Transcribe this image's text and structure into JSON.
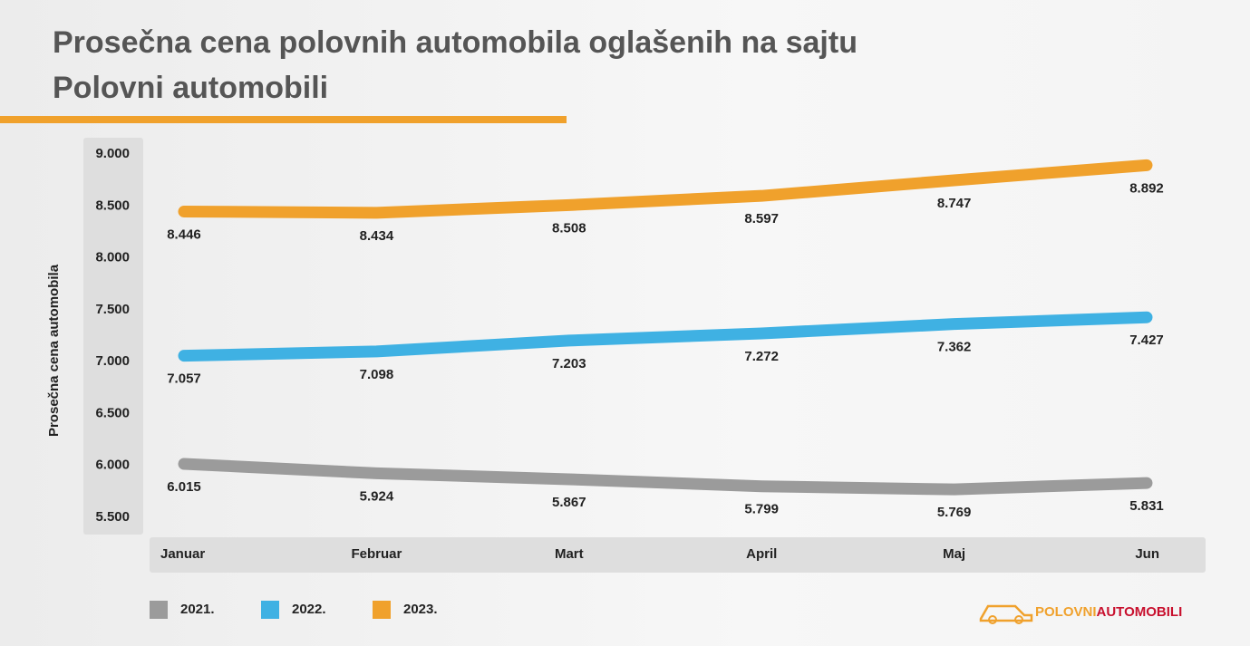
{
  "chart_data": {
    "type": "line",
    "title": "Prosečna cena polovnih automobila oglašenih na sajtu Polovni automobili",
    "y_label": "Prosečna cena automobila",
    "categories": [
      "Januar",
      "Februar",
      "Mart",
      "April",
      "Maj",
      "Jun"
    ],
    "series": [
      {
        "name": "2021.",
        "color": "#9b9b9b",
        "values": [
          6015,
          5924,
          5867,
          5799,
          5769,
          5831
        ],
        "value_labels": [
          "6.015",
          "5.924",
          "5.867",
          "5.799",
          "5.769",
          "5.831"
        ]
      },
      {
        "name": "2022.",
        "color": "#3fb1e3",
        "values": [
          7057,
          7098,
          7203,
          7272,
          7362,
          7427
        ],
        "value_labels": [
          "7.057",
          "7.098",
          "7.203",
          "7.272",
          "7.362",
          "7.427"
        ]
      },
      {
        "name": "2023.",
        "color": "#f0a12c",
        "values": [
          8446,
          8434,
          8508,
          8597,
          8747,
          8892
        ],
        "value_labels": [
          "8.446",
          "8.434",
          "8.508",
          "8.597",
          "8.747",
          "8.892"
        ]
      }
    ],
    "ylim": [
      5500,
      9000
    ],
    "yticks": [
      {
        "value": 5500,
        "label": "5.500"
      },
      {
        "value": 6000,
        "label": "6.000"
      },
      {
        "value": 6500,
        "label": "6.500"
      },
      {
        "value": 7000,
        "label": "7.000"
      },
      {
        "value": 7500,
        "label": "7.500"
      },
      {
        "value": 8000,
        "label": "8.000"
      },
      {
        "value": 8500,
        "label": "8.500"
      },
      {
        "value": 9000,
        "label": "9.000"
      }
    ],
    "legend": "bottom-left"
  },
  "logo": {
    "part1": "POLOVNI",
    "part2": "AUTOMOBILI"
  }
}
